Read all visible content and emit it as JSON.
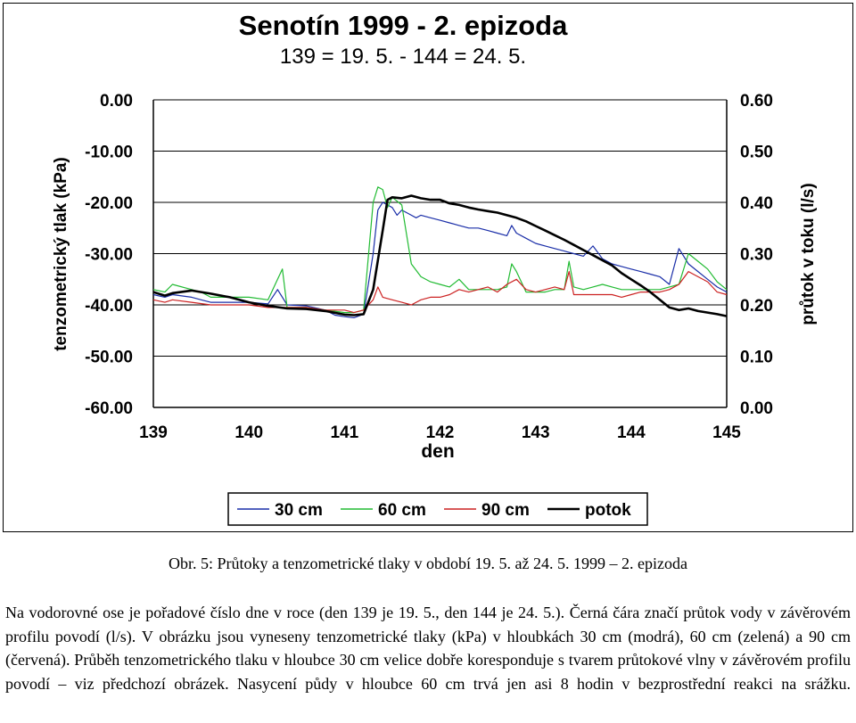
{
  "chart_data": {
    "type": "line",
    "title": "Senotín 1999 - 2. epizoda",
    "subtitle": "139 = 19. 5. - 144 = 24. 5.",
    "xlabel": "den",
    "ylabel": "tenzometrický tlak (kPa)",
    "ylabel_right": "průtok v toku (l/s)",
    "xlim": [
      139,
      145
    ],
    "ylim": [
      -60,
      0
    ],
    "ylim_right": [
      0,
      0.6
    ],
    "x_ticks": [
      "139",
      "140",
      "141",
      "142",
      "143",
      "144",
      "145"
    ],
    "y_ticks": [
      "0.00",
      "-10.00",
      "-20.00",
      "-30.00",
      "-40.00",
      "-50.00",
      "-60.00"
    ],
    "y_ticks_right": [
      "0.60",
      "0.50",
      "0.40",
      "0.30",
      "0.20",
      "0.10",
      "0.00"
    ],
    "grid": "horizontal",
    "legend_position": "bottom",
    "series": [
      {
        "name": "30 cm",
        "color": "#1a2ea8",
        "axis": "left",
        "x": [
          139.0,
          139.12,
          139.2,
          139.4,
          139.5,
          139.6,
          139.8,
          140.0,
          140.2,
          140.3,
          140.4,
          140.6,
          140.8,
          140.9,
          141.0,
          141.1,
          141.2,
          141.3,
          141.35,
          141.4,
          141.45,
          141.5,
          141.55,
          141.6,
          141.7,
          141.75,
          141.8,
          141.9,
          142.0,
          142.1,
          142.2,
          142.3,
          142.4,
          142.5,
          142.6,
          142.7,
          142.75,
          142.8,
          142.9,
          143.0,
          143.1,
          143.2,
          143.3,
          143.4,
          143.5,
          143.6,
          143.7,
          143.8,
          143.9,
          144.0,
          144.1,
          144.2,
          144.3,
          144.4,
          144.5,
          144.6,
          144.7,
          144.8,
          144.9,
          145.0
        ],
        "values": [
          -38.0,
          -38.5,
          -38.0,
          -38.5,
          -39.0,
          -39.5,
          -39.5,
          -39.5,
          -39.8,
          -37.0,
          -40.0,
          -40.2,
          -41.0,
          -42.0,
          -42.3,
          -42.5,
          -41.8,
          -30.0,
          -21.5,
          -20.0,
          -20.5,
          -21.0,
          -22.5,
          -21.5,
          -22.5,
          -23.0,
          -22.5,
          -23.0,
          -23.5,
          -24.0,
          -24.5,
          -25.0,
          -25.0,
          -25.5,
          -26.0,
          -26.5,
          -24.5,
          -26.0,
          -27.0,
          -28.0,
          -28.5,
          -29.0,
          -29.5,
          -30.0,
          -30.5,
          -28.5,
          -31.0,
          -32.0,
          -32.5,
          -33.0,
          -33.5,
          -34.0,
          -34.5,
          -36.0,
          -29.0,
          -32.0,
          -33.5,
          -35.0,
          -36.5,
          -37.5
        ]
      },
      {
        "name": "60 cm",
        "color": "#22bb33",
        "axis": "left",
        "x": [
          139.0,
          139.12,
          139.2,
          139.4,
          139.5,
          139.6,
          139.8,
          140.0,
          140.2,
          140.3,
          140.35,
          140.4,
          140.6,
          140.8,
          141.0,
          141.1,
          141.2,
          141.3,
          141.35,
          141.4,
          141.45,
          141.5,
          141.6,
          141.7,
          141.8,
          141.9,
          142.0,
          142.1,
          142.2,
          142.3,
          142.4,
          142.5,
          142.6,
          142.7,
          142.75,
          142.8,
          142.9,
          143.0,
          143.1,
          143.2,
          143.3,
          143.35,
          143.4,
          143.5,
          143.6,
          143.7,
          143.8,
          143.9,
          144.0,
          144.1,
          144.2,
          144.3,
          144.4,
          144.5,
          144.6,
          144.7,
          144.8,
          144.9,
          145.0
        ],
        "values": [
          -37.0,
          -37.5,
          -36.0,
          -37.0,
          -37.5,
          -38.5,
          -38.5,
          -38.5,
          -39.0,
          -35.0,
          -33.0,
          -40.5,
          -40.5,
          -41.0,
          -41.5,
          -41.5,
          -41.0,
          -20.0,
          -17.0,
          -17.5,
          -21.0,
          -19.0,
          -20.5,
          -32.0,
          -34.5,
          -35.5,
          -36.0,
          -36.5,
          -35.0,
          -37.0,
          -37.0,
          -37.0,
          -37.0,
          -36.5,
          -32.0,
          -33.5,
          -37.5,
          -37.5,
          -37.5,
          -37.0,
          -37.0,
          -31.5,
          -36.5,
          -37.0,
          -36.5,
          -36.0,
          -36.5,
          -37.0,
          -37.0,
          -37.0,
          -37.0,
          -37.0,
          -36.5,
          -36.0,
          -30.0,
          -31.5,
          -33.0,
          -35.5,
          -37.0
        ]
      },
      {
        "name": "90 cm",
        "color": "#cc2222",
        "axis": "left",
        "x": [
          139.0,
          139.12,
          139.2,
          139.4,
          139.6,
          139.8,
          140.0,
          140.2,
          140.4,
          140.6,
          140.8,
          141.0,
          141.1,
          141.2,
          141.3,
          141.35,
          141.4,
          141.5,
          141.6,
          141.7,
          141.8,
          141.9,
          142.0,
          142.1,
          142.2,
          142.3,
          142.4,
          142.5,
          142.6,
          142.7,
          142.8,
          142.9,
          143.0,
          143.1,
          143.2,
          143.3,
          143.35,
          143.4,
          143.5,
          143.6,
          143.7,
          143.8,
          143.9,
          144.0,
          144.1,
          144.2,
          144.3,
          144.4,
          144.5,
          144.6,
          144.7,
          144.8,
          144.9,
          145.0
        ],
        "values": [
          -39.0,
          -39.5,
          -39.0,
          -39.5,
          -40.0,
          -40.0,
          -40.0,
          -40.5,
          -40.5,
          -40.5,
          -41.0,
          -41.0,
          -41.5,
          -41.0,
          -39.0,
          -36.5,
          -38.5,
          -39.0,
          -39.5,
          -40.0,
          -39.0,
          -38.5,
          -38.5,
          -38.0,
          -37.0,
          -37.5,
          -37.0,
          -36.5,
          -37.5,
          -36.0,
          -35.0,
          -37.0,
          -37.5,
          -37.0,
          -36.5,
          -37.0,
          -33.5,
          -38.0,
          -38.0,
          -38.0,
          -38.0,
          -38.0,
          -38.5,
          -38.0,
          -37.5,
          -37.5,
          -37.5,
          -37.0,
          -36.0,
          -33.5,
          -34.5,
          -35.5,
          -37.5,
          -38.0
        ]
      },
      {
        "name": "potok",
        "color": "#000000",
        "axis": "right",
        "x": [
          139.0,
          139.12,
          139.2,
          139.4,
          139.6,
          139.8,
          140.0,
          140.2,
          140.4,
          140.6,
          140.8,
          141.0,
          141.1,
          141.2,
          141.3,
          141.4,
          141.45,
          141.5,
          141.6,
          141.7,
          141.8,
          141.9,
          142.0,
          142.1,
          142.2,
          142.3,
          142.4,
          142.5,
          142.6,
          142.7,
          142.8,
          142.9,
          143.0,
          143.1,
          143.2,
          143.3,
          143.4,
          143.5,
          143.6,
          143.7,
          143.8,
          143.9,
          144.0,
          144.1,
          144.2,
          144.3,
          144.4,
          144.5,
          144.6,
          144.7,
          144.8,
          144.9,
          145.0
        ],
        "values": [
          0.225,
          0.218,
          0.223,
          0.228,
          0.222,
          0.215,
          0.205,
          0.198,
          0.193,
          0.192,
          0.188,
          0.181,
          0.18,
          0.182,
          0.23,
          0.345,
          0.405,
          0.41,
          0.408,
          0.413,
          0.408,
          0.405,
          0.405,
          0.398,
          0.395,
          0.39,
          0.386,
          0.383,
          0.38,
          0.375,
          0.37,
          0.363,
          0.354,
          0.345,
          0.336,
          0.327,
          0.317,
          0.307,
          0.297,
          0.287,
          0.277,
          0.262,
          0.25,
          0.238,
          0.225,
          0.21,
          0.195,
          0.19,
          0.193,
          0.188,
          0.185,
          0.182,
          0.178
        ]
      }
    ]
  },
  "caption": "Obr. 5: Průtoky a tenzometrické tlaky v období 19. 5. až 24. 5. 1999 – 2. epizoda",
  "body_text": "Na vodorovné ose je pořadové číslo dne v roce (den 139 je 19. 5., den 144 je 24. 5.). Černá čára značí průtok vody v závěrovém profilu povodí (l/s). V obrázku jsou vyneseny tenzometrické tlaky (kPa) v hloubkách 30 cm (modrá), 60 cm (zelená) a 90 cm (červená). Průběh tenzometrického tlaku v hloubce 30 cm velice dobře koresponduje s tvarem průtokové vlny v závěrovém profilu povodí – viz předchozí obrázek. Nasycení půdy v hloubce 60 cm trvá jen asi 8 hodin v bezprostřední reakci na srážku."
}
